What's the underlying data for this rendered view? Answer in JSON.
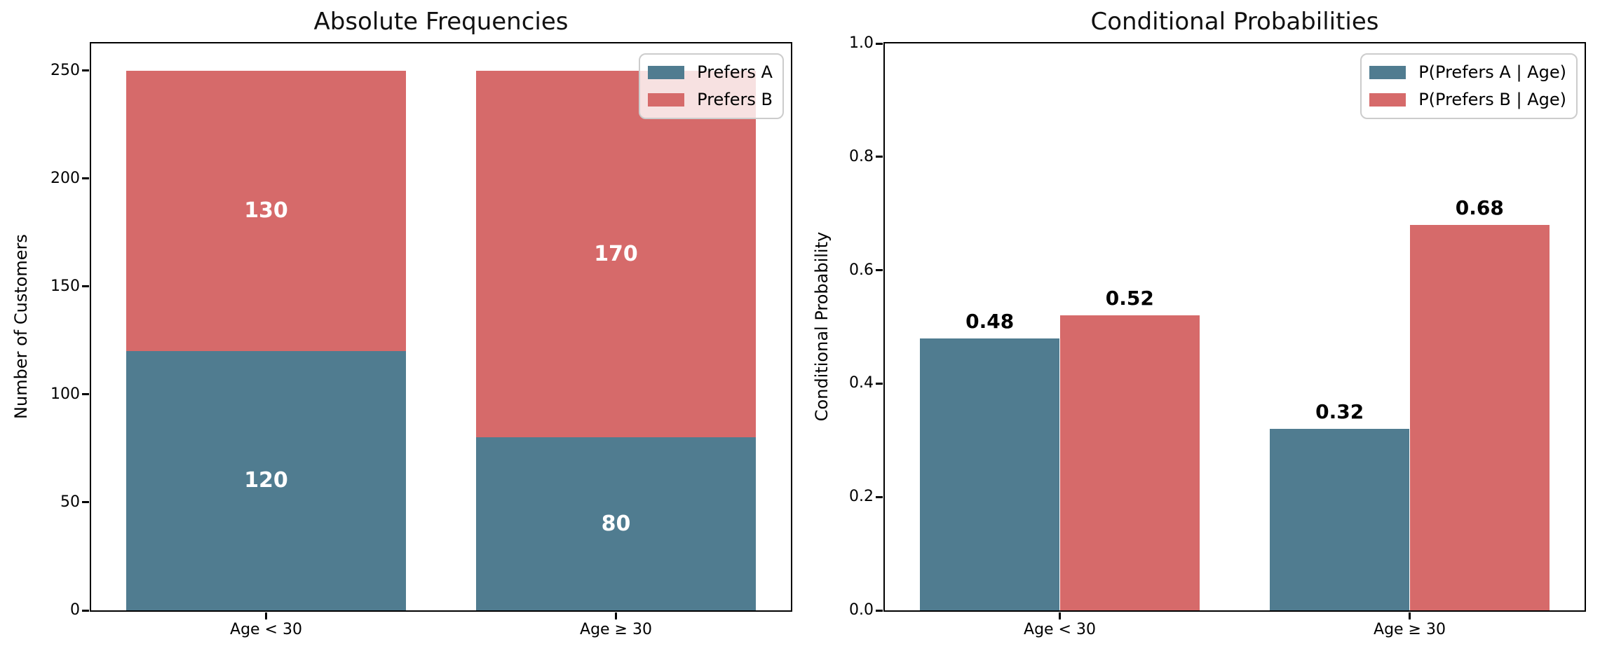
{
  "figure": {
    "background": "#ffffff",
    "text_color": "#000000"
  },
  "style": {
    "color_prefers_a": "#507C90",
    "color_prefers_b": "#D66A6A",
    "spine_color": "#000000",
    "legend_border_color": "#cccccc",
    "legend_background": "rgba(255,255,255,0.8)"
  },
  "chart_data": [
    {
      "type": "bar",
      "variant": "stacked",
      "title": "Absolute Frequencies",
      "ylabel": "Number of Customers",
      "xlabel": "",
      "categories": [
        "Age < 30",
        "Age ≥ 30"
      ],
      "series": [
        {
          "name": "Prefers A",
          "color": "#507C90",
          "values": [
            120,
            80
          ],
          "value_labels": [
            "120",
            "80"
          ]
        },
        {
          "name": "Prefers B",
          "color": "#D66A6A",
          "values": [
            130,
            170
          ],
          "value_labels": [
            "130",
            "170"
          ]
        }
      ],
      "ylim": [
        0,
        262.5
      ],
      "yticks": [
        0,
        50,
        100,
        150,
        200,
        250
      ],
      "ytick_labels": [
        "0",
        "50",
        "100",
        "150",
        "200",
        "250"
      ],
      "legend": {
        "position": "upper right",
        "entries": [
          "Prefers A",
          "Prefers B"
        ]
      },
      "value_label_style": "inside-white-bold",
      "grid": false
    },
    {
      "type": "bar",
      "variant": "grouped",
      "title": "Conditional Probabilities",
      "ylabel": "Conditional Probability",
      "xlabel": "",
      "categories": [
        "Age < 30",
        "Age ≥ 30"
      ],
      "series": [
        {
          "name": "P(Prefers A | Age)",
          "color": "#507C90",
          "values": [
            0.48,
            0.32
          ],
          "value_labels": [
            "0.48",
            "0.32"
          ]
        },
        {
          "name": "P(Prefers B | Age)",
          "color": "#D66A6A",
          "values": [
            0.52,
            0.68
          ],
          "value_labels": [
            "0.52",
            "0.68"
          ]
        }
      ],
      "ylim": [
        0,
        1.0
      ],
      "yticks": [
        0,
        0.2,
        0.4,
        0.6,
        0.8,
        1.0
      ],
      "ytick_labels": [
        "0.0",
        "0.2",
        "0.4",
        "0.6",
        "0.8",
        "1.0"
      ],
      "legend": {
        "position": "upper right",
        "entries": [
          "P(Prefers A | Age)",
          "P(Prefers B | Age)"
        ]
      },
      "value_label_style": "above-black-bold",
      "grid": false
    }
  ]
}
